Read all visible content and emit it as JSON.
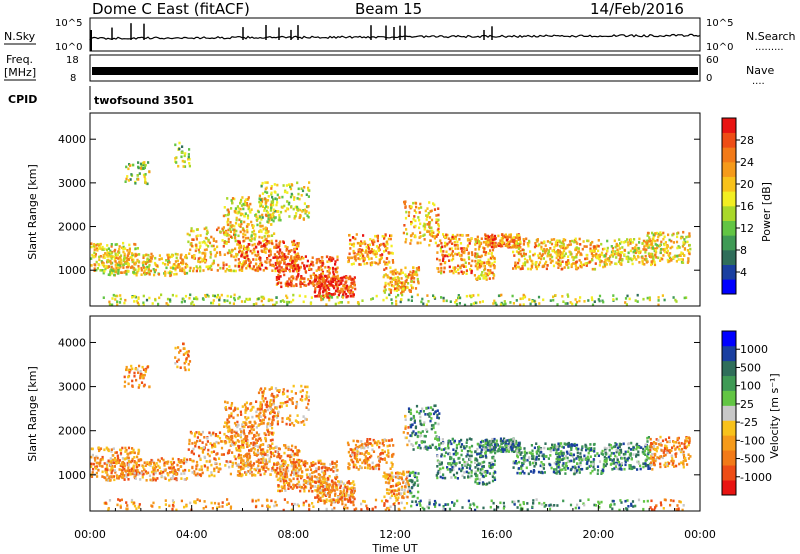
{
  "header": {
    "station": "Dome C East (fitACF)",
    "beam": "Beam 15",
    "date": "14/Feb/2016"
  },
  "top_panels": {
    "nsky_label": "N.Sky",
    "nsky_ticks": [
      "10^5",
      "10^0"
    ],
    "nsearch_label": "N.Search",
    "nsearch_marker": ".........",
    "freq_label_line1": "Freq.",
    "freq_label_line2": "[MHz]",
    "freq_ticks": [
      "18",
      "8"
    ],
    "nave_label": "Nave",
    "nave_marker": "....",
    "nave_ticks": [
      "60",
      "0"
    ],
    "cpid_label": "CPID",
    "cpid_value": "twofsound 3501"
  },
  "colors": {
    "power": [
      "#0000ff",
      "#1a3fa0",
      "#2f6e5a",
      "#3f9a55",
      "#62c544",
      "#a9d82a",
      "#f2ee22",
      "#f8c21b",
      "#f59a1a",
      "#f27a18",
      "#ee4d16",
      "#e81412"
    ],
    "velocity": [
      "#e81412",
      "#ee4d16",
      "#f27a18",
      "#f59a1a",
      "#f8c21b",
      "#c8c8c8",
      "#62c544",
      "#3f9a55",
      "#2f6e5a",
      "#1a3fa0",
      "#0000ff"
    ]
  },
  "chart_data": [
    {
      "type": "heatmap",
      "name_hint": "power",
      "ylabel": "Slant Range [km]",
      "ylim": [
        180,
        4600
      ],
      "yticks": [
        "1000",
        "2000",
        "3000",
        "4000"
      ],
      "colorbar_label": "Power [dB]",
      "colorbar_ticks": [
        "28",
        "24",
        "20",
        "16",
        "12",
        "8",
        "4"
      ],
      "colorbar_range": [
        0,
        32
      ]
    },
    {
      "type": "heatmap",
      "name_hint": "velocity",
      "ylabel": "Slant Range [km]",
      "ylim": [
        180,
        4600
      ],
      "yticks": [
        "1000",
        "2000",
        "3000",
        "4000"
      ],
      "xticks": [
        "00:00",
        "04:00",
        "08:00",
        "12:00",
        "16:00",
        "20:00",
        "00:00"
      ],
      "xlabel": "Time UT",
      "colorbar_label": "Velocity [m s⁻¹]",
      "colorbar_ticks": [
        "1000",
        "500",
        "100",
        "25",
        "-25",
        "-100",
        "-500",
        "-1000"
      ]
    }
  ]
}
